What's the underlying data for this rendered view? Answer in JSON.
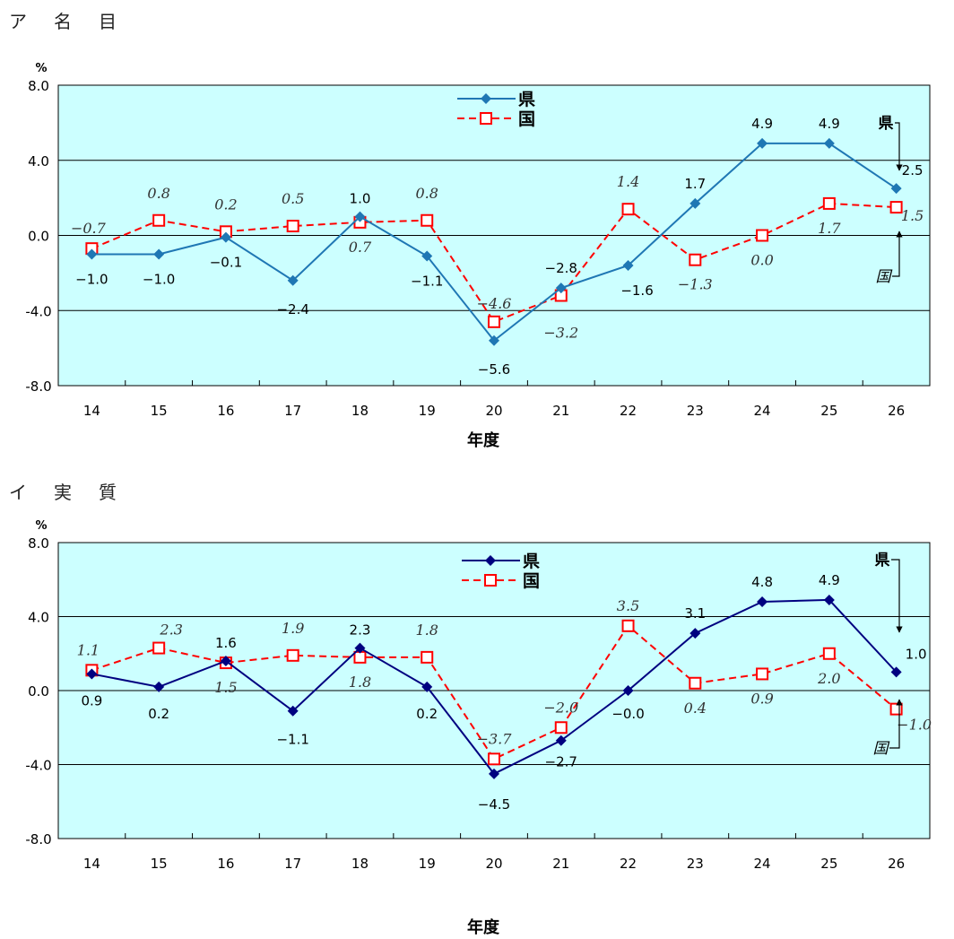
{
  "chart_data": [
    {
      "type": "line",
      "title": "ア　名　目",
      "title_parts": [
        "ア",
        "名",
        "目"
      ],
      "unit": "%",
      "xlabel": "年度",
      "categories": [
        "14",
        "15",
        "16",
        "17",
        "18",
        "19",
        "20",
        "21",
        "22",
        "23",
        "24",
        "25",
        "26"
      ],
      "ylim": [
        -8.0,
        8.0
      ],
      "yticks": [
        "8.0",
        "4.0",
        "0.0",
        "-4.0",
        "-8.0"
      ],
      "grid": true,
      "background": "#ccffff",
      "legend_position": "top-center",
      "series": [
        {
          "name": "県",
          "color": "#1f77b4",
          "marker": "diamond",
          "line_style": "solid",
          "values": [
            -1.0,
            -1.0,
            -0.1,
            -2.4,
            1.0,
            -1.1,
            -5.6,
            -2.8,
            -1.6,
            1.7,
            4.9,
            4.9,
            2.5
          ],
          "labels": [
            "−1.0",
            "−1.0",
            "−0.1",
            "−2.4",
            "1.0",
            "−1.1",
            "−5.6",
            "−2.8",
            "−1.6",
            "1.7",
            "4.9",
            "4.9",
            "2.5"
          ]
        },
        {
          "name": "国",
          "color": "#ff0000",
          "marker": "square-open",
          "line_style": "dashed",
          "values": [
            -0.7,
            0.8,
            0.2,
            0.5,
            0.7,
            0.8,
            -4.6,
            -3.2,
            1.4,
            -1.3,
            0.0,
            1.7,
            1.5
          ],
          "labels": [
            "−0.7",
            "0.8",
            "0.2",
            "0.5",
            "0.7",
            "0.8",
            "−4.6",
            "−3.2",
            "1.4",
            "−1.3",
            "0.0",
            "1.7",
            "1.5"
          ]
        }
      ],
      "annotations": [
        "県",
        "国"
      ]
    },
    {
      "type": "line",
      "title": "イ　実　質",
      "title_parts": [
        "イ",
        "実",
        "質"
      ],
      "unit": "%",
      "xlabel": "年度",
      "categories": [
        "14",
        "15",
        "16",
        "17",
        "18",
        "19",
        "20",
        "21",
        "22",
        "23",
        "24",
        "25",
        "26"
      ],
      "ylim": [
        -8.0,
        8.0
      ],
      "yticks": [
        "8.0",
        "4.0",
        "0.0",
        "-4.0",
        "-8.0"
      ],
      "grid": true,
      "background": "#ccffff",
      "legend_position": "top-center",
      "series": [
        {
          "name": "県",
          "color": "#000080",
          "marker": "diamond",
          "line_style": "solid",
          "values": [
            0.9,
            0.2,
            1.6,
            -1.1,
            2.3,
            0.2,
            -4.5,
            -2.7,
            -0.0,
            3.1,
            4.8,
            4.9,
            1.0
          ],
          "labels": [
            "0.9",
            "0.2",
            "1.6",
            "−1.1",
            "2.3",
            "0.2",
            "−4.5",
            "−2.7",
            "−0.0",
            "3.1",
            "4.8",
            "4.9",
            "1.0"
          ]
        },
        {
          "name": "国",
          "color": "#ff0000",
          "marker": "square-open",
          "line_style": "dashed",
          "values": [
            1.1,
            2.3,
            1.5,
            1.9,
            1.8,
            1.8,
            -3.7,
            -2.0,
            3.5,
            0.4,
            0.9,
            2.0,
            -1.0
          ],
          "labels": [
            "1.1",
            "2.3",
            "1.5",
            "1.9",
            "1.8",
            "1.8",
            "−3.7",
            "−2.0",
            "3.5",
            "0.4",
            "0.9",
            "2.0",
            "−1.0"
          ]
        }
      ],
      "annotations": [
        "県",
        "国"
      ]
    }
  ]
}
